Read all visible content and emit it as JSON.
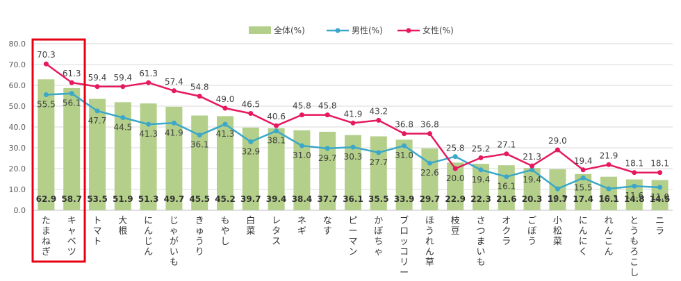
{
  "chart_data": {
    "type": "bar",
    "ylim": [
      0,
      80
    ],
    "yticks": [
      "0.0",
      "10.0",
      "20.0",
      "30.0",
      "40.0",
      "50.0",
      "60.0",
      "70.0",
      "80.0"
    ],
    "grid": true,
    "legend_position": "top",
    "categories": [
      "たまねぎ",
      "キャベツ",
      "トマト",
      "大根",
      "にんじん",
      "じゃがいも",
      "きゅうり",
      "もやし",
      "白菜",
      "レタス",
      "ネギ",
      "なす",
      "ピーマン",
      "かぼちゃ",
      "ブロッコリー",
      "ほうれん草",
      "枝豆",
      "さつまいも",
      "オクラ",
      "ごぼう",
      "小松菜",
      "にんにく",
      "れんこん",
      "とうもろこし",
      "ニラ"
    ],
    "series": [
      {
        "name": "全体(%)",
        "type": "bar",
        "color": "#b3cf8a",
        "values": [
          62.9,
          58.7,
          53.5,
          51.9,
          51.3,
          49.7,
          45.5,
          45.2,
          39.7,
          39.4,
          38.4,
          37.7,
          36.1,
          35.5,
          33.9,
          29.7,
          22.9,
          22.3,
          21.6,
          20.3,
          19.7,
          17.4,
          16.1,
          14.8,
          14.5
        ]
      },
      {
        "name": "男性(%)",
        "type": "line",
        "color": "#3ba7c9",
        "values": [
          55.5,
          56.1,
          47.7,
          44.5,
          41.3,
          41.9,
          36.1,
          41.3,
          32.9,
          38.1,
          31.0,
          29.7,
          30.3,
          27.7,
          31.0,
          22.6,
          25.8,
          19.4,
          16.1,
          19.4,
          10.3,
          15.5,
          10.3,
          11.6,
          11.0
        ]
      },
      {
        "name": "女性(%)",
        "type": "line",
        "color": "#e6185f",
        "values": [
          70.3,
          61.3,
          59.4,
          59.4,
          61.3,
          57.4,
          54.8,
          49.0,
          46.5,
          40.6,
          45.8,
          45.8,
          41.9,
          43.2,
          36.8,
          36.8,
          20.0,
          25.2,
          27.1,
          21.3,
          29.0,
          19.4,
          21.9,
          18.1,
          18.1
        ]
      }
    ],
    "highlight_categories": [
      "たまねぎ",
      "キャベツ"
    ],
    "highlight_color": "#e60012"
  }
}
